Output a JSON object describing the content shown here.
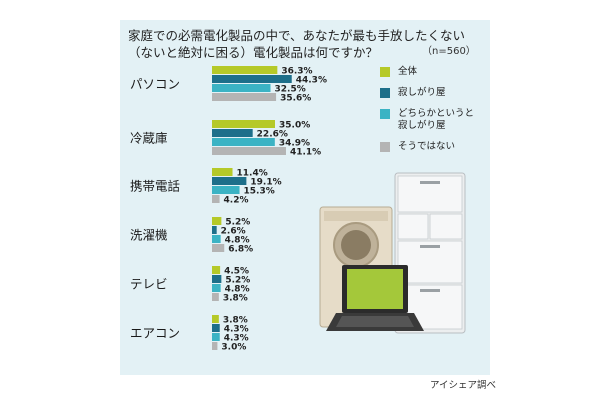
{
  "title_lines": [
    "家庭での必需電化製品の中で、あなたが最も手放したくない",
    "（ないと絶対に困る）電化製品は何ですか？"
  ],
  "sample_note": "（n=560）",
  "source": "アイシェア調べ",
  "chart_data": {
    "type": "bar",
    "orientation": "horizontal",
    "title": "家庭での必需電化製品の中で、あなたが最も手放したくない（ないと絶対に困る）電化製品は何ですか？",
    "categories": [
      "パソコン",
      "冷蔵庫",
      "携帯電話",
      "洗濯機",
      "テレビ",
      "エアコン"
    ],
    "series": [
      {
        "name": "全体",
        "color": "#b5c928",
        "values": [
          36.3,
          35.0,
          11.4,
          5.2,
          4.5,
          3.8
        ]
      },
      {
        "name": "寂しがり屋",
        "color": "#1d6f8a",
        "values": [
          44.3,
          22.6,
          19.1,
          2.6,
          5.2,
          4.3
        ]
      },
      {
        "name": "どちらかというと寂しがり屋",
        "color": "#3bb3c4",
        "values": [
          32.5,
          34.9,
          15.3,
          4.8,
          4.8,
          4.3
        ]
      },
      {
        "name": "そうではない",
        "color": "#b4b4b4",
        "values": [
          35.6,
          41.1,
          4.2,
          6.8,
          3.8,
          3.0
        ]
      }
    ],
    "unit": "%",
    "legend_position": "right",
    "grid": false
  },
  "legend_labels": [
    "全体",
    "寂しがり屋",
    "どちらかというと\n寂しがり屋",
    "そうではない"
  ],
  "illustration": [
    "refrigerator-icon",
    "washing-machine-icon",
    "laptop-icon"
  ]
}
